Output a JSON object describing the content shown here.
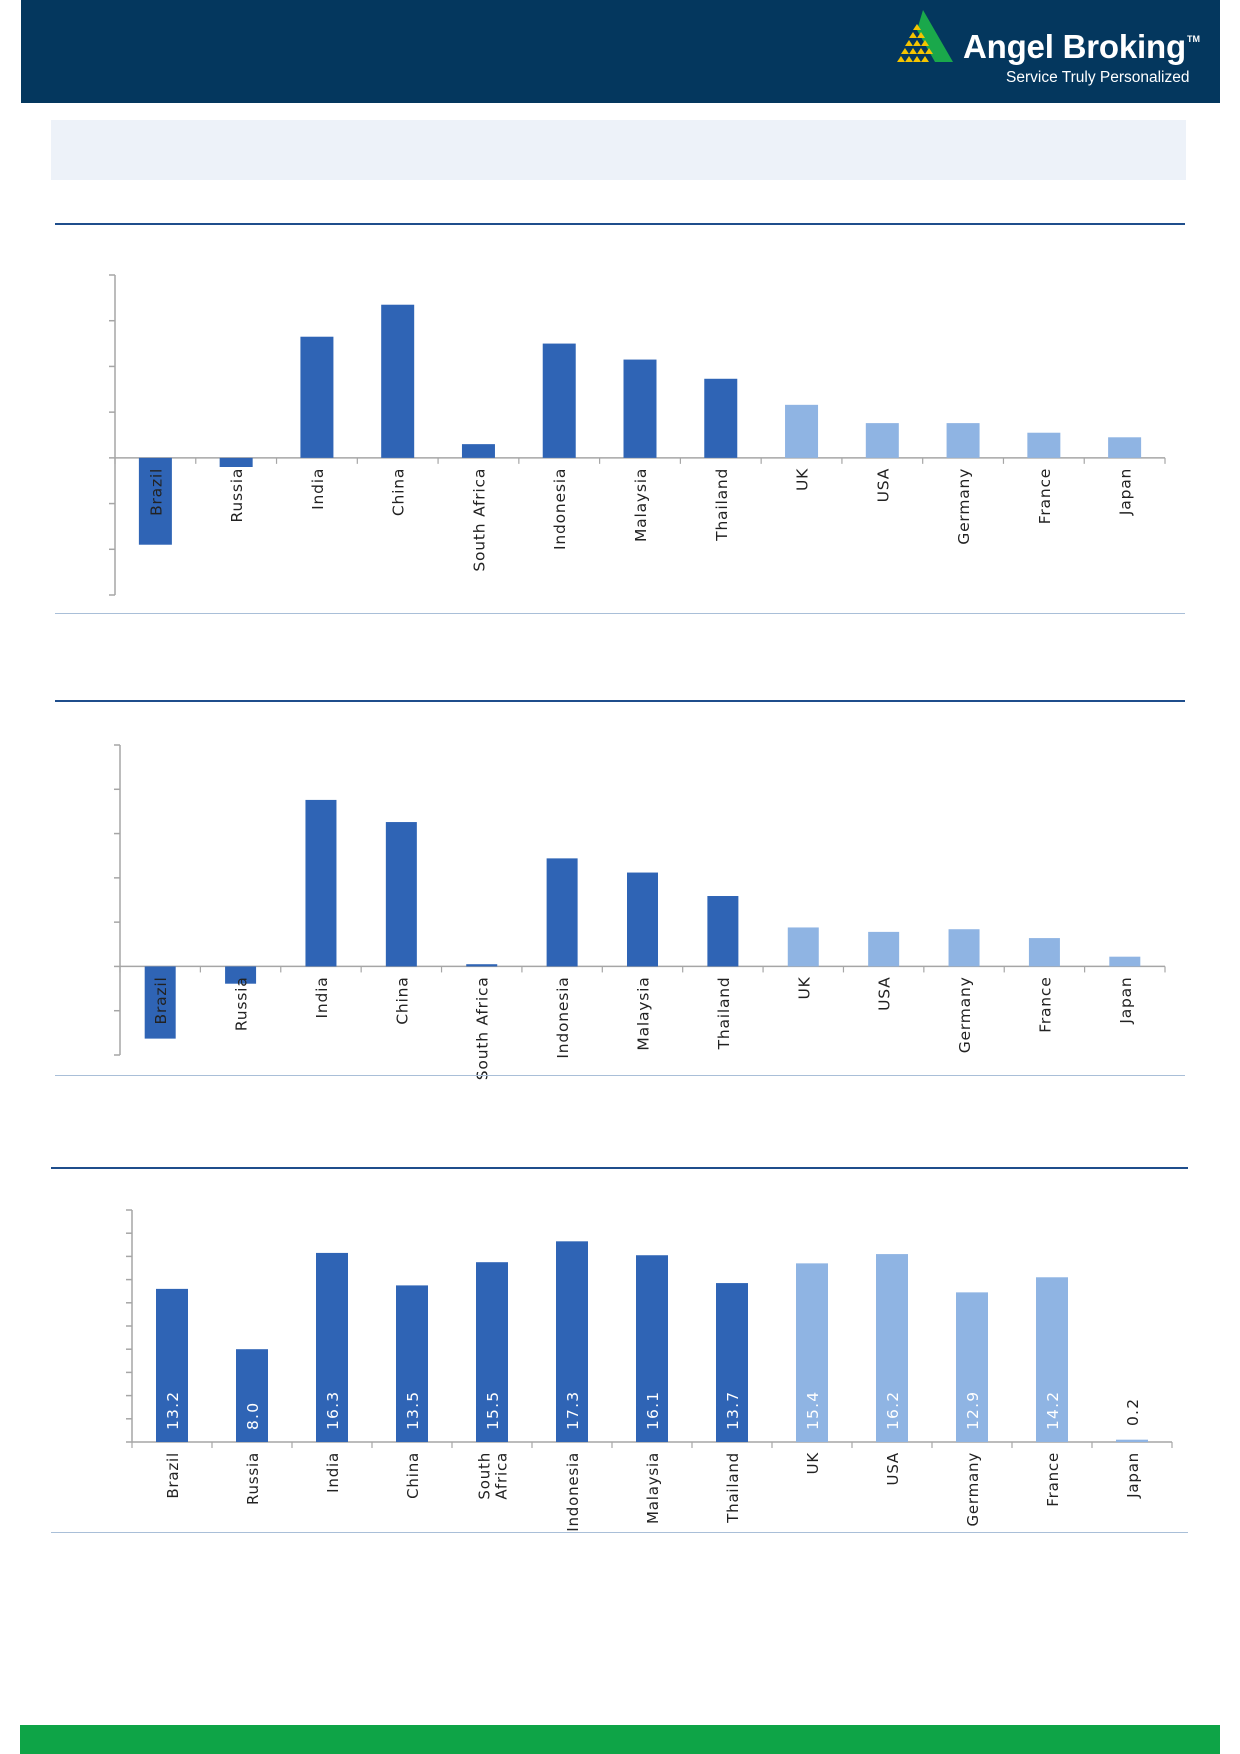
{
  "header": {
    "brand_name": "Angel Broking",
    "trademark": "TM",
    "tagline": "Service Truly Personalized",
    "colors": {
      "background": "#04375e",
      "logo_green": "#1aa84b",
      "logo_gold": "#f5c400"
    }
  },
  "colors": {
    "emerging_bar": "#2f64b5",
    "developed_bar": "#8fb4e3",
    "section_rule": "#1f4e8c",
    "footer": "#0ea447",
    "title_band": "#edf2f9"
  },
  "chart_data": [
    {
      "type": "bar",
      "title": "",
      "xlabel": "",
      "ylabel": "",
      "categories": [
        "Brazil",
        "Russia",
        "India",
        "China",
        "South Africa",
        "Indonesia",
        "Malaysia",
        "Thailand",
        "UK",
        "USA",
        "Germany",
        "France",
        "Japan"
      ],
      "values": [
        -19,
        -2,
        26.5,
        33.5,
        3,
        25,
        21.5,
        17.3,
        11.6,
        7.6,
        7.6,
        5.5,
        4.5
      ],
      "series_groups": [
        "emerging",
        "emerging",
        "emerging",
        "emerging",
        "emerging",
        "emerging",
        "emerging",
        "emerging",
        "developed",
        "developed",
        "developed",
        "developed",
        "developed"
      ],
      "ylim": [
        -30,
        40
      ],
      "tick_step": 10,
      "grid": false,
      "legend": "none",
      "data_labels": false
    },
    {
      "type": "bar",
      "title": "",
      "xlabel": "",
      "ylabel": "",
      "categories": [
        "Brazil",
        "Russia",
        "India",
        "China",
        "South Africa",
        "Indonesia",
        "Malaysia",
        "Thailand",
        "UK",
        "USA",
        "Germany",
        "France",
        "Japan"
      ],
      "values": [
        -16.3,
        -3.9,
        37.6,
        32.6,
        0.5,
        24.4,
        21.2,
        15.9,
        8.8,
        7.8,
        8.4,
        6.4,
        2.2
      ],
      "series_groups": [
        "emerging",
        "emerging",
        "emerging",
        "emerging",
        "emerging",
        "emerging",
        "emerging",
        "emerging",
        "developed",
        "developed",
        "developed",
        "developed",
        "developed"
      ],
      "ylim": [
        -20,
        50
      ],
      "tick_step": 10,
      "grid": false,
      "legend": "none",
      "data_labels": false
    },
    {
      "type": "bar",
      "title": "",
      "xlabel": "",
      "ylabel": "",
      "categories": [
        "Brazil",
        "Russia",
        "India",
        "China",
        "South Africa",
        "Indonesia",
        "Malaysia",
        "Thailand",
        "UK",
        "USA",
        "Germany",
        "France",
        "Japan"
      ],
      "category_lines": [
        [
          "Brazil"
        ],
        [
          "Russia"
        ],
        [
          "India"
        ],
        [
          "China"
        ],
        [
          "South",
          "Africa"
        ],
        [
          "Indonesia"
        ],
        [
          "Malaysia"
        ],
        [
          "Thailand"
        ],
        [
          "UK"
        ],
        [
          "USA"
        ],
        [
          "Germany"
        ],
        [
          "France"
        ],
        [
          "Japan"
        ]
      ],
      "values": [
        13.2,
        8.0,
        16.3,
        13.5,
        15.5,
        17.3,
        16.1,
        13.7,
        15.4,
        16.2,
        12.9,
        14.2,
        0.2
      ],
      "value_labels": [
        "13.2",
        "8.0",
        "16.3",
        "13.5",
        "15.5",
        "17.3",
        "16.1",
        "13.7",
        "15.4",
        "16.2",
        "12.9",
        "14.2",
        "0.2"
      ],
      "series_groups": [
        "emerging",
        "emerging",
        "emerging",
        "emerging",
        "emerging",
        "emerging",
        "emerging",
        "emerging",
        "developed",
        "developed",
        "developed",
        "developed",
        "developed"
      ],
      "ylim": [
        0,
        20
      ],
      "tick_step": 2,
      "grid": false,
      "legend": "none",
      "data_labels": true
    }
  ]
}
